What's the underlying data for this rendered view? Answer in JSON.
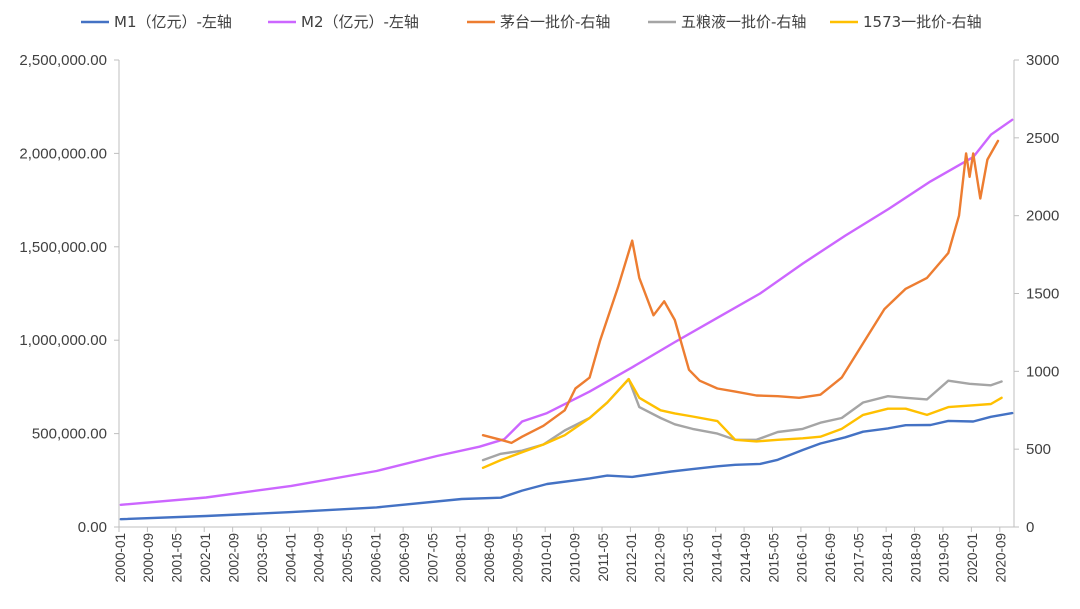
{
  "chart_data": {
    "type": "line",
    "title": "",
    "legend_position": "top",
    "grid": false,
    "y_left": {
      "range": [
        0,
        2500000
      ],
      "ticks": [
        0,
        500000,
        1000000,
        1500000,
        2000000,
        2500000
      ],
      "tick_labels": [
        "0.00",
        "500,000.00",
        "1,000,000.00",
        "1,500,000.00",
        "2,000,000.00",
        "2,500,000.00"
      ]
    },
    "y_right": {
      "range": [
        0,
        3000
      ],
      "ticks": [
        0,
        500,
        1000,
        1500,
        2000,
        2500,
        3000
      ],
      "tick_labels": [
        "0",
        "500",
        "1000",
        "1500",
        "2000",
        "2500",
        "3000"
      ]
    },
    "x_axis": {
      "start": "2000-01",
      "end": "2020-12",
      "tick_labels": [
        "2000-01",
        "2000-09",
        "2001-05",
        "2002-01",
        "2002-09",
        "2003-05",
        "2004-01",
        "2004-09",
        "2005-05",
        "2006-01",
        "2006-09",
        "2007-05",
        "2008-01",
        "2008-09",
        "2009-05",
        "2010-01",
        "2010-09",
        "2011-05",
        "2012-01",
        "2012-09",
        "2013-05",
        "2014-01",
        "2014-09",
        "2015-05",
        "2016-01",
        "2016-09",
        "2017-05",
        "2018-01",
        "2018-09",
        "2019-05",
        "2020-01",
        "2020-09"
      ]
    },
    "series": [
      {
        "name": "M1（亿元）-左轴",
        "axis": "left",
        "color": "#4472c4",
        "points": [
          [
            "2000-01",
            42000
          ],
          [
            "2002-01",
            59000
          ],
          [
            "2004-01",
            80000
          ],
          [
            "2006-01",
            105000
          ],
          [
            "2008-01",
            150000
          ],
          [
            "2008-12",
            157000
          ],
          [
            "2009-06",
            195000
          ],
          [
            "2010-01",
            230000
          ],
          [
            "2011-01",
            260000
          ],
          [
            "2011-06",
            275000
          ],
          [
            "2012-01",
            268000
          ],
          [
            "2012-12",
            297000
          ],
          [
            "2013-06",
            310000
          ],
          [
            "2014-01",
            325000
          ],
          [
            "2014-06",
            333000
          ],
          [
            "2015-01",
            338000
          ],
          [
            "2015-06",
            360000
          ],
          [
            "2016-01",
            412000
          ],
          [
            "2016-06",
            447000
          ],
          [
            "2017-01",
            480000
          ],
          [
            "2017-06",
            510000
          ],
          [
            "2018-01",
            528000
          ],
          [
            "2018-06",
            545000
          ],
          [
            "2019-01",
            546000
          ],
          [
            "2019-06",
            568000
          ],
          [
            "2020-01",
            565000
          ],
          [
            "2020-06",
            590000
          ],
          [
            "2020-12",
            610000
          ]
        ]
      },
      {
        "name": "M2（亿元）-左轴",
        "axis": "left",
        "color": "#cc66ff",
        "points": [
          [
            "2000-01",
            119000
          ],
          [
            "2002-01",
            158000
          ],
          [
            "2004-01",
            220000
          ],
          [
            "2006-01",
            300000
          ],
          [
            "2007-06",
            380000
          ],
          [
            "2008-06",
            430000
          ],
          [
            "2009-01",
            470000
          ],
          [
            "2009-06",
            565000
          ],
          [
            "2010-01",
            610000
          ],
          [
            "2011-01",
            725000
          ],
          [
            "2012-01",
            855000
          ],
          [
            "2013-01",
            990000
          ],
          [
            "2014-01",
            1120000
          ],
          [
            "2015-01",
            1250000
          ],
          [
            "2016-01",
            1410000
          ],
          [
            "2017-01",
            1560000
          ],
          [
            "2018-01",
            1700000
          ],
          [
            "2019-01",
            1850000
          ],
          [
            "2020-01",
            1980000
          ],
          [
            "2020-06",
            2100000
          ],
          [
            "2020-12",
            2180000
          ]
        ]
      },
      {
        "name": "茅台一批价-右轴",
        "axis": "right",
        "color": "#ed7d31",
        "points": [
          [
            "2008-07",
            590
          ],
          [
            "2008-12",
            560
          ],
          [
            "2009-03",
            540
          ],
          [
            "2009-06",
            580
          ],
          [
            "2009-12",
            650
          ],
          [
            "2010-06",
            750
          ],
          [
            "2010-09",
            890
          ],
          [
            "2011-01",
            960
          ],
          [
            "2011-04",
            1200
          ],
          [
            "2011-09",
            1540
          ],
          [
            "2012-01",
            1840
          ],
          [
            "2012-03",
            1600
          ],
          [
            "2012-07",
            1360
          ],
          [
            "2012-10",
            1450
          ],
          [
            "2013-01",
            1330
          ],
          [
            "2013-05",
            1010
          ],
          [
            "2013-08",
            940
          ],
          [
            "2014-01",
            890
          ],
          [
            "2014-06",
            870
          ],
          [
            "2014-12",
            845
          ],
          [
            "2015-06",
            840
          ],
          [
            "2015-12",
            830
          ],
          [
            "2016-06",
            850
          ],
          [
            "2016-12",
            960
          ],
          [
            "2017-06",
            1180
          ],
          [
            "2017-12",
            1400
          ],
          [
            "2018-06",
            1530
          ],
          [
            "2018-12",
            1600
          ],
          [
            "2019-06",
            1760
          ],
          [
            "2019-09",
            2000
          ],
          [
            "2019-11",
            2400
          ],
          [
            "2019-12",
            2250
          ],
          [
            "2020-01",
            2400
          ],
          [
            "2020-03",
            2110
          ],
          [
            "2020-05",
            2360
          ],
          [
            "2020-08",
            2480
          ]
        ]
      },
      {
        "name": "五粮液一批价-右轴",
        "axis": "right",
        "color": "#a5a5a5",
        "points": [
          [
            "2008-07",
            430
          ],
          [
            "2008-12",
            470
          ],
          [
            "2009-06",
            490
          ],
          [
            "2009-12",
            530
          ],
          [
            "2010-06",
            620
          ],
          [
            "2011-01",
            700
          ],
          [
            "2011-06",
            800
          ],
          [
            "2011-12",
            950
          ],
          [
            "2012-03",
            770
          ],
          [
            "2012-09",
            700
          ],
          [
            "2013-01",
            660
          ],
          [
            "2013-06",
            630
          ],
          [
            "2014-01",
            600
          ],
          [
            "2014-06",
            560
          ],
          [
            "2014-12",
            560
          ],
          [
            "2015-06",
            610
          ],
          [
            "2016-01",
            630
          ],
          [
            "2016-06",
            670
          ],
          [
            "2016-12",
            700
          ],
          [
            "2017-06",
            800
          ],
          [
            "2018-01",
            840
          ],
          [
            "2018-06",
            830
          ],
          [
            "2018-12",
            820
          ],
          [
            "2019-06",
            940
          ],
          [
            "2019-12",
            920
          ],
          [
            "2020-06",
            910
          ],
          [
            "2020-09",
            935
          ]
        ]
      },
      {
        "name": "1573一批价-右轴",
        "axis": "right",
        "color": "#ffc000",
        "points": [
          [
            "2008-07",
            380
          ],
          [
            "2008-12",
            430
          ],
          [
            "2009-06",
            480
          ],
          [
            "2009-12",
            530
          ],
          [
            "2010-06",
            590
          ],
          [
            "2011-01",
            700
          ],
          [
            "2011-06",
            800
          ],
          [
            "2011-12",
            950
          ],
          [
            "2012-03",
            830
          ],
          [
            "2012-09",
            750
          ],
          [
            "2013-01",
            730
          ],
          [
            "2013-06",
            710
          ],
          [
            "2014-01",
            680
          ],
          [
            "2014-06",
            560
          ],
          [
            "2014-12",
            550
          ],
          [
            "2015-06",
            560
          ],
          [
            "2016-01",
            570
          ],
          [
            "2016-06",
            580
          ],
          [
            "2016-12",
            630
          ],
          [
            "2017-06",
            720
          ],
          [
            "2018-01",
            760
          ],
          [
            "2018-06",
            760
          ],
          [
            "2018-12",
            720
          ],
          [
            "2019-06",
            770
          ],
          [
            "2019-12",
            780
          ],
          [
            "2020-06",
            790
          ],
          [
            "2020-09",
            830
          ]
        ]
      }
    ]
  }
}
